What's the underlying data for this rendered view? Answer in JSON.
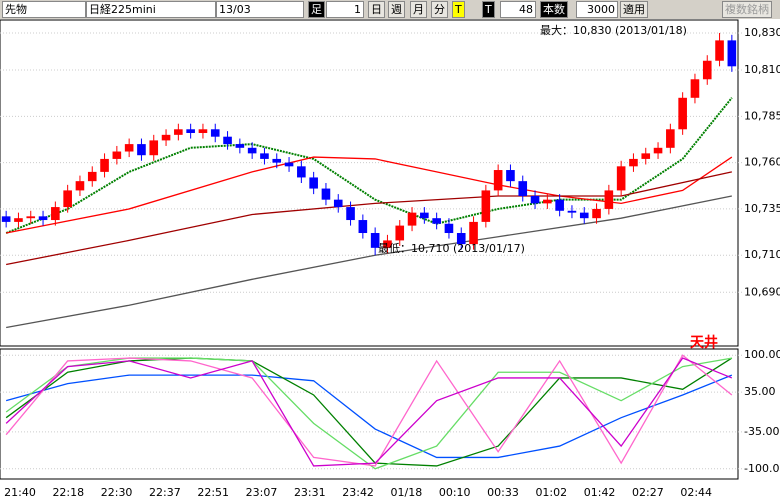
{
  "toolbar": {
    "item1": "先物",
    "item2": "日経225mini",
    "item3": "13/03",
    "ashi": "足",
    "ashi_value": "1",
    "day": "日",
    "week": "週",
    "month": "月",
    "minute": "分",
    "t1": "T",
    "t2": "T",
    "count": "48",
    "bars_label": "本数",
    "bars_value": "3000",
    "apply": "適用",
    "multi": "複数銘柄"
  },
  "chart_data": [
    {
      "type": "candlestick",
      "ylim": [
        10661,
        10837
      ],
      "yticks": [
        {
          "value": 10830,
          "label": "10,830"
        },
        {
          "value": 10810,
          "label": "10,810"
        },
        {
          "value": 10785,
          "label": "10,785"
        },
        {
          "value": 10760,
          "label": "10,760"
        },
        {
          "value": 10735,
          "label": "10,735"
        },
        {
          "value": 10710,
          "label": "10,710"
        },
        {
          "value": 10690,
          "label": "10,690"
        }
      ],
      "up_color": "#ff0000",
      "down_color": "#0000ff",
      "open": [
        10731,
        10728,
        10730,
        10731,
        10729,
        10736,
        10745,
        10750,
        10755,
        10762,
        10766,
        10770,
        10764,
        10772,
        10775,
        10778,
        10776,
        10778,
        10774,
        10770,
        10768,
        10765,
        10762,
        10760,
        10758,
        10752,
        10746,
        10740,
        10736,
        10729,
        10722,
        10714,
        10718,
        10726,
        10733,
        10730,
        10727,
        10722,
        10716,
        10728,
        10745,
        10756,
        10750,
        10742,
        10738,
        10740,
        10734,
        10733,
        10730,
        10735,
        10745,
        10758,
        10762,
        10765,
        10768,
        10778,
        10795,
        10805,
        10815,
        10826
      ],
      "high": [
        10734,
        10733,
        10734,
        10734,
        10739,
        10748,
        10753,
        10758,
        10765,
        10769,
        10773,
        10773,
        10775,
        10778,
        10781,
        10781,
        10781,
        10781,
        10777,
        10773,
        10771,
        10768,
        10765,
        10763,
        10761,
        10755,
        10749,
        10743,
        10739,
        10732,
        10725,
        10721,
        10729,
        10736,
        10736,
        10733,
        10730,
        10725,
        10731,
        10748,
        10759,
        10759,
        10753,
        10745,
        10743,
        10743,
        10737,
        10736,
        10738,
        10748,
        10761,
        10765,
        10768,
        10771,
        10781,
        10798,
        10808,
        10818,
        10830,
        10829
      ],
      "low": [
        10725,
        10725,
        10727,
        10726,
        10726,
        10733,
        10742,
        10747,
        10752,
        10759,
        10763,
        10761,
        10761,
        10769,
        10772,
        10773,
        10773,
        10771,
        10767,
        10765,
        10762,
        10759,
        10757,
        10755,
        10749,
        10743,
        10737,
        10733,
        10726,
        10719,
        10710,
        10711,
        10715,
        10723,
        10727,
        10724,
        10719,
        10713,
        10713,
        10725,
        10742,
        10747,
        10739,
        10735,
        10735,
        10731,
        10730,
        10727,
        10727,
        10732,
        10742,
        10755,
        10759,
        10762,
        10765,
        10775,
        10792,
        10802,
        10812,
        10809
      ],
      "close": [
        10728,
        10730,
        10731,
        10729,
        10736,
        10745,
        10750,
        10755,
        10762,
        10766,
        10770,
        10764,
        10772,
        10775,
        10778,
        10776,
        10778,
        10774,
        10770,
        10768,
        10765,
        10762,
        10760,
        10758,
        10752,
        10746,
        10740,
        10736,
        10729,
        10722,
        10714,
        10718,
        10726,
        10733,
        10730,
        10727,
        10722,
        10716,
        10728,
        10745,
        10756,
        10750,
        10742,
        10738,
        10740,
        10734,
        10733,
        10730,
        10735,
        10745,
        10758,
        10762,
        10765,
        10768,
        10778,
        10795,
        10805,
        10815,
        10826,
        10812
      ],
      "lines": [
        {
          "color": "#008000",
          "dash": true,
          "x": [
            0,
            5,
            10,
            15,
            20,
            25,
            30,
            35,
            40,
            45,
            50,
            55,
            59
          ],
          "values": [
            10722,
            10735,
            10755,
            10768,
            10770,
            10762,
            10740,
            10727,
            10735,
            10740,
            10740,
            10762,
            10795
          ]
        },
        {
          "color": "#ff0000",
          "x": [
            0,
            10,
            20,
            25,
            30,
            35,
            40,
            45,
            50,
            55,
            59
          ],
          "values": [
            10722,
            10735,
            10755,
            10763,
            10762,
            10755,
            10748,
            10742,
            10738,
            10745,
            10763
          ]
        },
        {
          "color": "#a00000",
          "x": [
            0,
            10,
            20,
            30,
            40,
            50,
            59
          ],
          "values": [
            10705,
            10718,
            10732,
            10738,
            10742,
            10742,
            10755
          ]
        },
        {
          "color": "#555555",
          "x": [
            0,
            10,
            20,
            30,
            40,
            50,
            59
          ],
          "values": [
            10671,
            10683,
            10697,
            10710,
            10720,
            10730,
            10742
          ]
        }
      ],
      "annotations": [
        "最大：10,830 (2013/01/18)",
        "最低：10,710 (2013/01/17)"
      ]
    },
    {
      "type": "line",
      "ylim": [
        -118,
        111
      ],
      "yticks": [
        {
          "value": 100,
          "label": "100.00"
        },
        {
          "value": 35,
          "label": "35.00"
        },
        {
          "value": -35,
          "label": "-35.00"
        },
        {
          "value": -100,
          "label": "-100.00"
        }
      ],
      "annotation": "天井",
      "series": [
        {
          "color": "#0050ff",
          "x": [
            0,
            5,
            10,
            15,
            20,
            25,
            30,
            35,
            40,
            45,
            50,
            55,
            59
          ],
          "values": [
            20,
            50,
            65,
            65,
            65,
            55,
            -30,
            -80,
            -80,
            -60,
            -10,
            30,
            65
          ]
        },
        {
          "color": "#008000",
          "x": [
            0,
            5,
            10,
            15,
            20,
            25,
            30,
            35,
            40,
            45,
            50,
            55,
            59
          ],
          "values": [
            -10,
            70,
            90,
            95,
            90,
            30,
            -90,
            -95,
            -60,
            60,
            60,
            40,
            95
          ]
        },
        {
          "color": "#66dd66",
          "x": [
            0,
            5,
            10,
            15,
            20,
            25,
            30,
            35,
            40,
            45,
            50,
            55,
            59
          ],
          "values": [
            0,
            80,
            95,
            95,
            90,
            -20,
            -100,
            -60,
            70,
            70,
            20,
            80,
            95
          ]
        },
        {
          "color": "#ff66cc",
          "x": [
            0,
            5,
            10,
            15,
            20,
            25,
            30,
            35,
            40,
            45,
            50,
            55,
            59
          ],
          "values": [
            -40,
            90,
            95,
            90,
            60,
            -80,
            -95,
            90,
            -70,
            90,
            -90,
            100,
            30
          ]
        },
        {
          "color": "#cc00cc",
          "x": [
            0,
            5,
            10,
            15,
            20,
            25,
            30,
            35,
            40,
            45,
            50,
            55,
            59
          ],
          "values": [
            -20,
            80,
            90,
            60,
            90,
            -95,
            -90,
            20,
            60,
            60,
            -60,
            95,
            60
          ]
        }
      ],
      "xtick_labels": [
        "21:40",
        "22:18",
        "22:30",
        "22:37",
        "22:51",
        "23:07",
        "23:31",
        "23:42",
        "01/18",
        "00:10",
        "00:33",
        "01:02",
        "01:42",
        "02:27",
        "02:44"
      ]
    }
  ]
}
